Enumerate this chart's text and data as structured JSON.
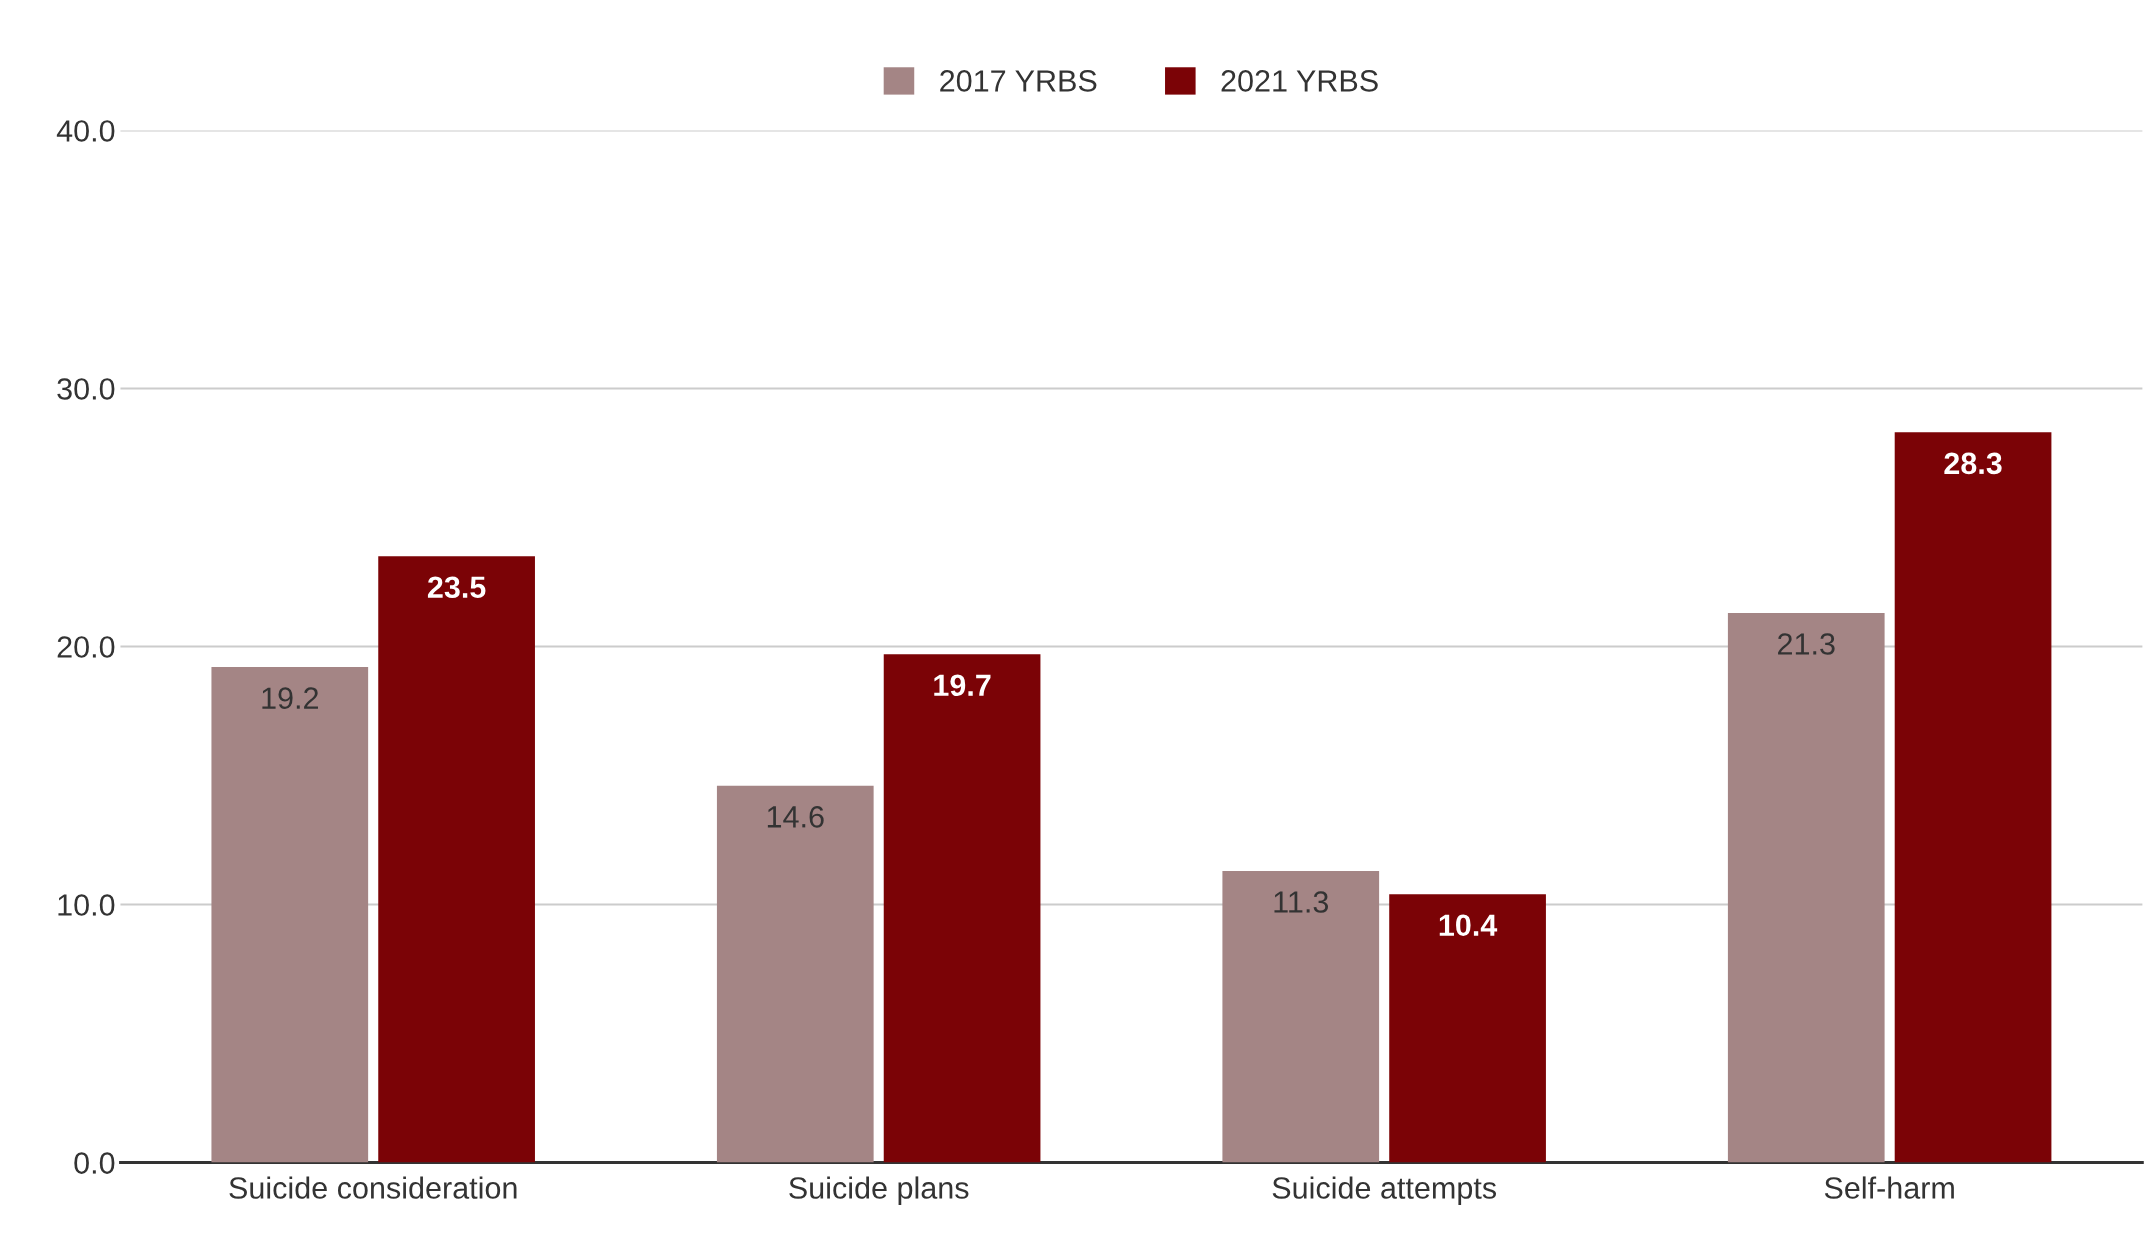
{
  "chart_data": {
    "type": "bar",
    "categories": [
      "Suicide consideration",
      "Suicide plans",
      "Suicide attempts",
      "Self-harm"
    ],
    "series": [
      {
        "name": "2017 YRBS",
        "color": "#a48585",
        "values": [
          19.2,
          14.6,
          11.3,
          21.3
        ]
      },
      {
        "name": "2021 YRBS",
        "color": "#7b0306",
        "values": [
          23.5,
          19.7,
          10.4,
          28.3
        ]
      }
    ],
    "ylim": [
      0,
      40
    ],
    "yticks": [
      {
        "value": 0,
        "label": "0.0"
      },
      {
        "value": 10,
        "label": "10.0"
      },
      {
        "value": 20,
        "label": "20.0"
      },
      {
        "value": 30,
        "label": "30.0"
      },
      {
        "value": 40,
        "label": "40.0"
      }
    ],
    "grid": "y",
    "legend": "top",
    "data_labels": true
  }
}
